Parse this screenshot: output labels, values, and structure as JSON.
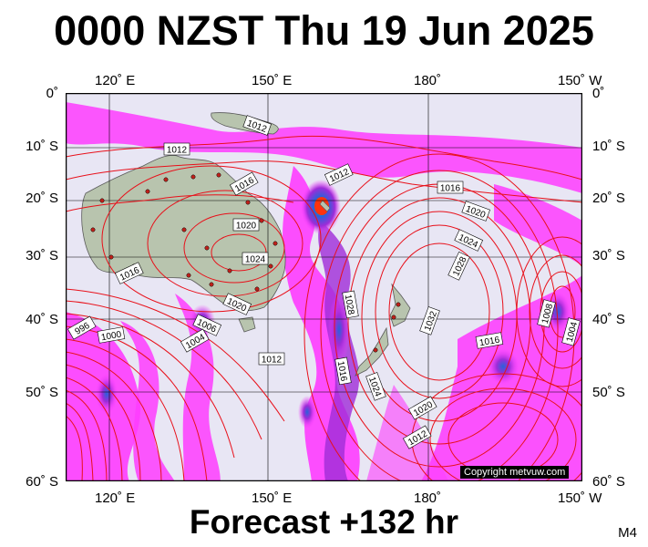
{
  "title": "0000 NZST Thu 19 Jun 2025",
  "footer": "Forecast +132 hr",
  "model_code": "M4",
  "copyright": "Copyright metvuw.com",
  "axes": {
    "lon_labels": [
      "120˚ E",
      "150˚ E",
      "180˚",
      "150˚ W"
    ],
    "lat_labels": [
      "0˚",
      "10˚ S",
      "20˚ S",
      "30˚ S",
      "40˚ S",
      "50˚ S",
      "60˚ S"
    ]
  },
  "isobar_labels": [
    "1012",
    "1012",
    "1016",
    "1012",
    "1016",
    "1020",
    "1020",
    "1024",
    "1024",
    "1028",
    "1016",
    "1028",
    "1032",
    "1020",
    "1006",
    "1004",
    "1012",
    "996",
    "1000",
    "1016",
    "1024",
    "1020",
    "1012",
    "1016",
    "1008",
    "1004"
  ],
  "colors": {
    "ocean": "#e8e6f4",
    "isobar": "#e8101a",
    "rain_light": "#ff33ff",
    "rain_mid": "#9b22d6",
    "rain_heavy": "#1e5bd8",
    "rain_core": "#2ad06a",
    "land": "#b8c4ae"
  }
}
